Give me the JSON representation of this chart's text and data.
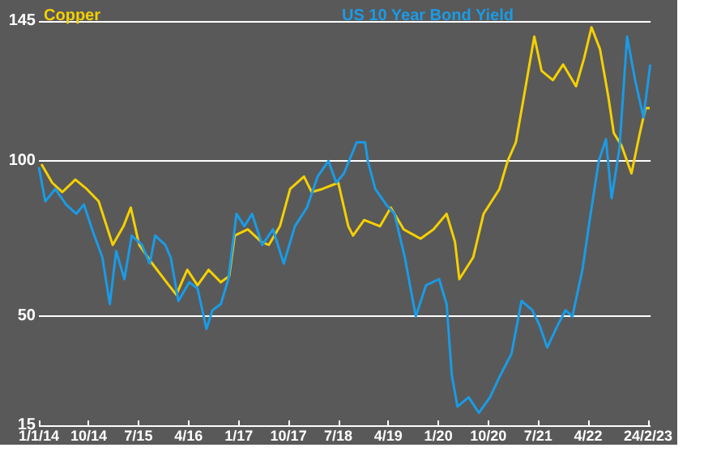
{
  "chart_data": {
    "type": "line",
    "xlim": [
      "2014-01-01",
      "2023-03-10"
    ],
    "xticks": [
      {
        "value": "2014-01-01",
        "label": "1/1/14"
      },
      {
        "value": "2014-10-01",
        "label": "10/14"
      },
      {
        "value": "2015-07-01",
        "label": "7/15"
      },
      {
        "value": "2016-04-01",
        "label": "4/16"
      },
      {
        "value": "2017-01-01",
        "label": "1/17"
      },
      {
        "value": "2017-10-01",
        "label": "10/17"
      },
      {
        "value": "2018-07-01",
        "label": "7/18"
      },
      {
        "value": "2019-04-01",
        "label": "4/19"
      },
      {
        "value": "2020-01-01",
        "label": "1/20"
      },
      {
        "value": "2020-10-01",
        "label": "10/20"
      },
      {
        "value": "2021-07-01",
        "label": "7/21"
      },
      {
        "value": "2022-04-01",
        "label": "4/22"
      },
      {
        "value": "2023-02-24",
        "label": "24/2/23"
      }
    ],
    "ylim": [
      15,
      145
    ],
    "yticks": [
      15,
      50,
      100,
      145
    ],
    "grid": "y",
    "legend": "top",
    "marker": "none",
    "series": [
      {
        "name": "Copper",
        "color": "#f5d000",
        "x": [
          "2014-01-15",
          "2014-03-15",
          "2014-05-10",
          "2014-07-20",
          "2014-09-20",
          "2014-11-25",
          "2015-02-10",
          "2015-04-10",
          "2015-05-20",
          "2015-07-05",
          "2015-09-15",
          "2015-12-15",
          "2016-01-25",
          "2016-03-25",
          "2016-05-20",
          "2016-07-20",
          "2016-09-25",
          "2016-11-10",
          "2016-12-10",
          "2017-02-20",
          "2017-05-05",
          "2017-06-15",
          "2017-08-15",
          "2017-10-10",
          "2017-12-25",
          "2018-02-05",
          "2018-04-05",
          "2018-07-01",
          "2018-08-25",
          "2018-09-20",
          "2018-11-20",
          "2019-02-15",
          "2019-04-15",
          "2019-06-25",
          "2019-09-25",
          "2019-12-05",
          "2020-02-15",
          "2020-04-01",
          "2020-04-25",
          "2020-07-10",
          "2020-09-05",
          "2020-12-01",
          "2021-01-15",
          "2021-03-01",
          "2021-04-15",
          "2021-06-10",
          "2021-07-20",
          "2021-09-20",
          "2021-11-15",
          "2022-01-25",
          "2022-03-10",
          "2022-04-20",
          "2022-06-05",
          "2022-07-20",
          "2022-08-20",
          "2022-10-01",
          "2022-11-25",
          "2023-01-10",
          "2023-02-10",
          "2023-03-05"
        ],
        "values": [
          99,
          93,
          90,
          94,
          91,
          87,
          73,
          79,
          85,
          73,
          67,
          60,
          57,
          65,
          60,
          65,
          61,
          63,
          76,
          78,
          74,
          73,
          79,
          91,
          95,
          90,
          91,
          93,
          79,
          76,
          81,
          79,
          85,
          78,
          75,
          78,
          83,
          74,
          62,
          69,
          83,
          91,
          100,
          106,
          121,
          140,
          129,
          126,
          131,
          124,
          133,
          143,
          136,
          121,
          109,
          105,
          96,
          109,
          117,
          117
        ]
      },
      {
        "name": "US 10 Year Bond Yield",
        "color": "#1a9be6",
        "x": [
          "2014-01-01",
          "2014-02-05",
          "2014-04-01",
          "2014-05-30",
          "2014-07-25",
          "2014-09-05",
          "2014-10-20",
          "2014-12-15",
          "2015-01-25",
          "2015-03-01",
          "2015-04-15",
          "2015-05-25",
          "2015-07-20",
          "2015-09-01",
          "2015-10-01",
          "2015-11-25",
          "2015-12-25",
          "2016-02-05",
          "2016-04-05",
          "2016-05-20",
          "2016-07-08",
          "2016-08-10",
          "2016-09-25",
          "2016-11-05",
          "2016-12-20",
          "2017-02-01",
          "2017-03-15",
          "2017-05-10",
          "2017-07-08",
          "2017-09-05",
          "2017-11-05",
          "2018-01-10",
          "2018-03-10",
          "2018-05-08",
          "2018-06-20",
          "2018-08-01",
          "2018-10-10",
          "2018-11-25",
          "2018-12-10",
          "2019-01-20",
          "2019-03-20",
          "2019-05-05",
          "2019-07-01",
          "2019-08-30",
          "2019-10-25",
          "2020-01-05",
          "2020-02-15",
          "2020-03-15",
          "2020-04-15",
          "2020-06-15",
          "2020-08-10",
          "2020-10-10",
          "2020-12-05",
          "2021-02-05",
          "2021-04-01",
          "2021-05-30",
          "2021-07-10",
          "2021-08-20",
          "2021-10-15",
          "2021-11-28",
          "2022-01-05",
          "2022-03-01",
          "2022-04-15",
          "2022-05-30",
          "2022-07-08",
          "2022-08-08",
          "2022-09-20",
          "2022-11-01",
          "2022-12-15",
          "2023-01-30",
          "2023-03-08"
        ],
        "values": [
          98,
          87,
          91,
          86,
          83,
          86,
          78,
          69,
          54,
          71,
          62,
          76,
          73,
          67,
          76,
          73,
          69,
          55,
          61,
          59,
          46,
          52,
          54,
          62,
          83,
          79,
          83,
          73,
          78,
          67,
          79,
          85,
          95,
          100,
          93,
          96,
          106,
          106,
          100,
          91,
          86,
          83,
          69,
          50,
          60,
          62,
          54,
          31,
          21,
          24,
          19,
          24,
          31,
          38,
          55,
          52,
          47,
          40,
          47,
          52,
          50,
          65,
          83,
          100,
          107,
          88,
          104,
          140,
          126,
          114,
          131
        ]
      }
    ]
  }
}
